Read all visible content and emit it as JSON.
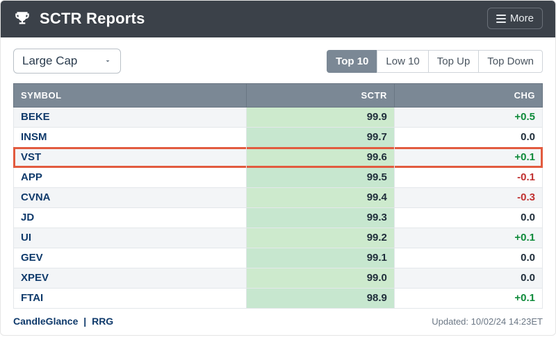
{
  "header": {
    "title": "SCTR Reports",
    "more_label": "More"
  },
  "controls": {
    "select_value": "Large Cap",
    "tabs": [
      {
        "label": "Top 10",
        "active": true
      },
      {
        "label": "Low 10",
        "active": false
      },
      {
        "label": "Top Up",
        "active": false
      },
      {
        "label": "Top Down",
        "active": false
      }
    ]
  },
  "table": {
    "columns": {
      "symbol": "SYMBOL",
      "sctr": "SCTR",
      "chg": "CHG"
    },
    "sctr_col_bg": "#c7e7cf",
    "header_bg": "#7b8895",
    "highlight_row_index": 2,
    "highlight_color": "#e25b3f",
    "rows": [
      {
        "symbol": "BEKE",
        "sctr": "99.9",
        "chg": "+0.5",
        "chg_sign": "pos"
      },
      {
        "symbol": "INSM",
        "sctr": "99.7",
        "chg": "0.0",
        "chg_sign": "zero"
      },
      {
        "symbol": "VST",
        "sctr": "99.6",
        "chg": "+0.1",
        "chg_sign": "pos"
      },
      {
        "symbol": "APP",
        "sctr": "99.5",
        "chg": "-0.1",
        "chg_sign": "neg"
      },
      {
        "symbol": "CVNA",
        "sctr": "99.4",
        "chg": "-0.3",
        "chg_sign": "neg"
      },
      {
        "symbol": "JD",
        "sctr": "99.3",
        "chg": "0.0",
        "chg_sign": "zero"
      },
      {
        "symbol": "UI",
        "sctr": "99.2",
        "chg": "+0.1",
        "chg_sign": "pos"
      },
      {
        "symbol": "GEV",
        "sctr": "99.1",
        "chg": "0.0",
        "chg_sign": "zero"
      },
      {
        "symbol": "XPEV",
        "sctr": "99.0",
        "chg": "0.0",
        "chg_sign": "zero"
      },
      {
        "symbol": "FTAI",
        "sctr": "98.9",
        "chg": "+0.1",
        "chg_sign": "pos"
      }
    ]
  },
  "footer": {
    "links": {
      "candleglance": "CandleGlance",
      "rrg": "RRG"
    },
    "updated_prefix": "Updated: ",
    "updated_value": "10/02/24 14:23ET"
  },
  "colors": {
    "header_bg": "#3b4149",
    "pos": "#0e8a3a",
    "neg": "#c03030",
    "link": "#0f3a6b"
  }
}
